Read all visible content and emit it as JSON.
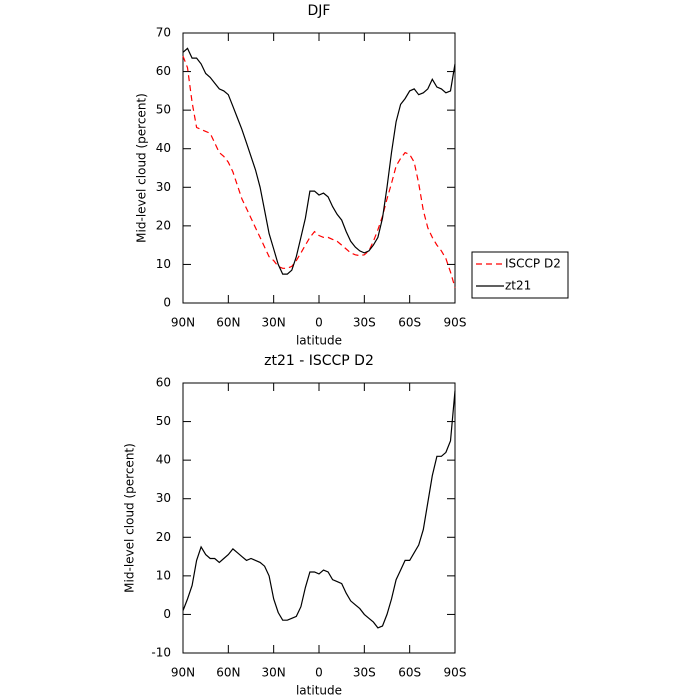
{
  "chart_data": [
    {
      "type": "line",
      "title": "DJF",
      "xlabel": "latitude",
      "ylabel": "Mid-level cloud (percent)",
      "x": [
        90,
        87,
        84,
        81,
        78,
        75,
        72,
        69,
        66,
        63,
        60,
        57,
        54,
        51,
        48,
        45,
        42,
        39,
        36,
        33,
        30,
        27,
        24,
        21,
        18,
        15,
        12,
        9,
        6,
        3,
        0,
        -3,
        -6,
        -9,
        -12,
        -15,
        -18,
        -21,
        -24,
        -27,
        -30,
        -33,
        -36,
        -39,
        -42,
        -45,
        -48,
        -51,
        -54,
        -57,
        -60,
        -63,
        -66,
        -69,
        -72,
        -75,
        -78,
        -81,
        -84,
        -87,
        -90
      ],
      "series": [
        {
          "name": "ISCCP D2",
          "color": "#ff0000",
          "linestyle": "dashed",
          "values": [
            64,
            61,
            52,
            45.5,
            45,
            44.5,
            44,
            41.5,
            39,
            38,
            36.5,
            34,
            30.5,
            27,
            24.5,
            22,
            19.5,
            17,
            14.5,
            12,
            11,
            9.5,
            9,
            9,
            9.5,
            11,
            13,
            15,
            17,
            18.5,
            17.5,
            17,
            17,
            16.5,
            16,
            15,
            14,
            13,
            12.5,
            12.3,
            12.5,
            13.5,
            16,
            19,
            22.5,
            27,
            31,
            35.5,
            37.5,
            39,
            38.5,
            36.5,
            31,
            24,
            19.5,
            17,
            15,
            13.5,
            11.5,
            8,
            4
          ]
        },
        {
          "name": "zt21",
          "color": "#000000",
          "linestyle": "solid",
          "values": [
            65,
            66,
            63.5,
            63.5,
            62,
            59.5,
            58.5,
            57,
            55.5,
            55,
            54,
            51,
            48,
            45,
            41.5,
            38,
            34.5,
            30,
            24,
            18,
            14,
            10,
            7.5,
            7.5,
            8.5,
            12,
            17,
            22,
            29,
            29,
            28,
            28.5,
            27.5,
            25,
            23,
            21.5,
            18.5,
            16,
            14.5,
            13.5,
            13,
            13.5,
            15,
            17,
            22,
            30,
            39,
            47,
            51.5,
            53,
            55,
            55.5,
            54,
            54.5,
            55.5,
            58,
            56,
            55.5,
            54.5,
            55,
            62
          ]
        }
      ],
      "xlim": [
        90,
        -90
      ],
      "xticks": [
        {
          "value": 90,
          "label": "90N"
        },
        {
          "value": 60,
          "label": "60N"
        },
        {
          "value": 30,
          "label": "30N"
        },
        0,
        {
          "value": -30,
          "label": "30S"
        },
        {
          "value": -60,
          "label": "60S"
        },
        {
          "value": -90,
          "label": "90S"
        }
      ],
      "ylim": [
        0,
        70
      ],
      "yticks": [
        0,
        10,
        20,
        30,
        40,
        50,
        60,
        70
      ],
      "grid": false,
      "legend": "right"
    },
    {
      "type": "line",
      "title": "zt21 - ISCCP D2",
      "xlabel": "latitude",
      "ylabel": "Mid-level cloud (percent)",
      "x": [
        90,
        87,
        84,
        81,
        78,
        75,
        72,
        69,
        66,
        63,
        60,
        57,
        54,
        51,
        48,
        45,
        42,
        39,
        36,
        33,
        30,
        27,
        24,
        21,
        18,
        15,
        12,
        9,
        6,
        3,
        0,
        -3,
        -6,
        -9,
        -12,
        -15,
        -18,
        -21,
        -24,
        -27,
        -30,
        -33,
        -36,
        -39,
        -42,
        -45,
        -48,
        -51,
        -54,
        -57,
        -60,
        -63,
        -66,
        -69,
        -72,
        -75,
        -78,
        -81,
        -84,
        -87,
        -90
      ],
      "color": "#000000",
      "values": [
        1,
        4,
        7.5,
        14,
        17.5,
        15.5,
        14.5,
        14.5,
        13.5,
        14.5,
        15.5,
        17,
        16,
        15,
        14,
        14.5,
        14,
        13.5,
        12.5,
        10,
        4,
        0.5,
        -1.5,
        -1.5,
        -1,
        -0.5,
        2,
        7,
        11,
        11,
        10.5,
        11.5,
        11,
        9,
        8.5,
        8,
        5.5,
        3.5,
        2.5,
        1.5,
        0,
        -1,
        -2,
        -3.5,
        -3,
        0,
        4,
        9,
        11.5,
        14,
        14,
        16,
        18,
        22,
        29,
        36,
        41,
        41,
        42,
        45,
        58
      ],
      "xlim": [
        90,
        -90
      ],
      "xticks": [
        {
          "value": 90,
          "label": "90N"
        },
        {
          "value": 60,
          "label": "60N"
        },
        {
          "value": 30,
          "label": "30N"
        },
        0,
        {
          "value": -30,
          "label": "30S"
        },
        {
          "value": -60,
          "label": "60S"
        },
        {
          "value": -90,
          "label": "90S"
        }
      ],
      "ylim": [
        -10,
        60
      ],
      "yticks": [
        -10,
        0,
        10,
        20,
        30,
        40,
        50,
        60
      ],
      "grid": false
    }
  ]
}
